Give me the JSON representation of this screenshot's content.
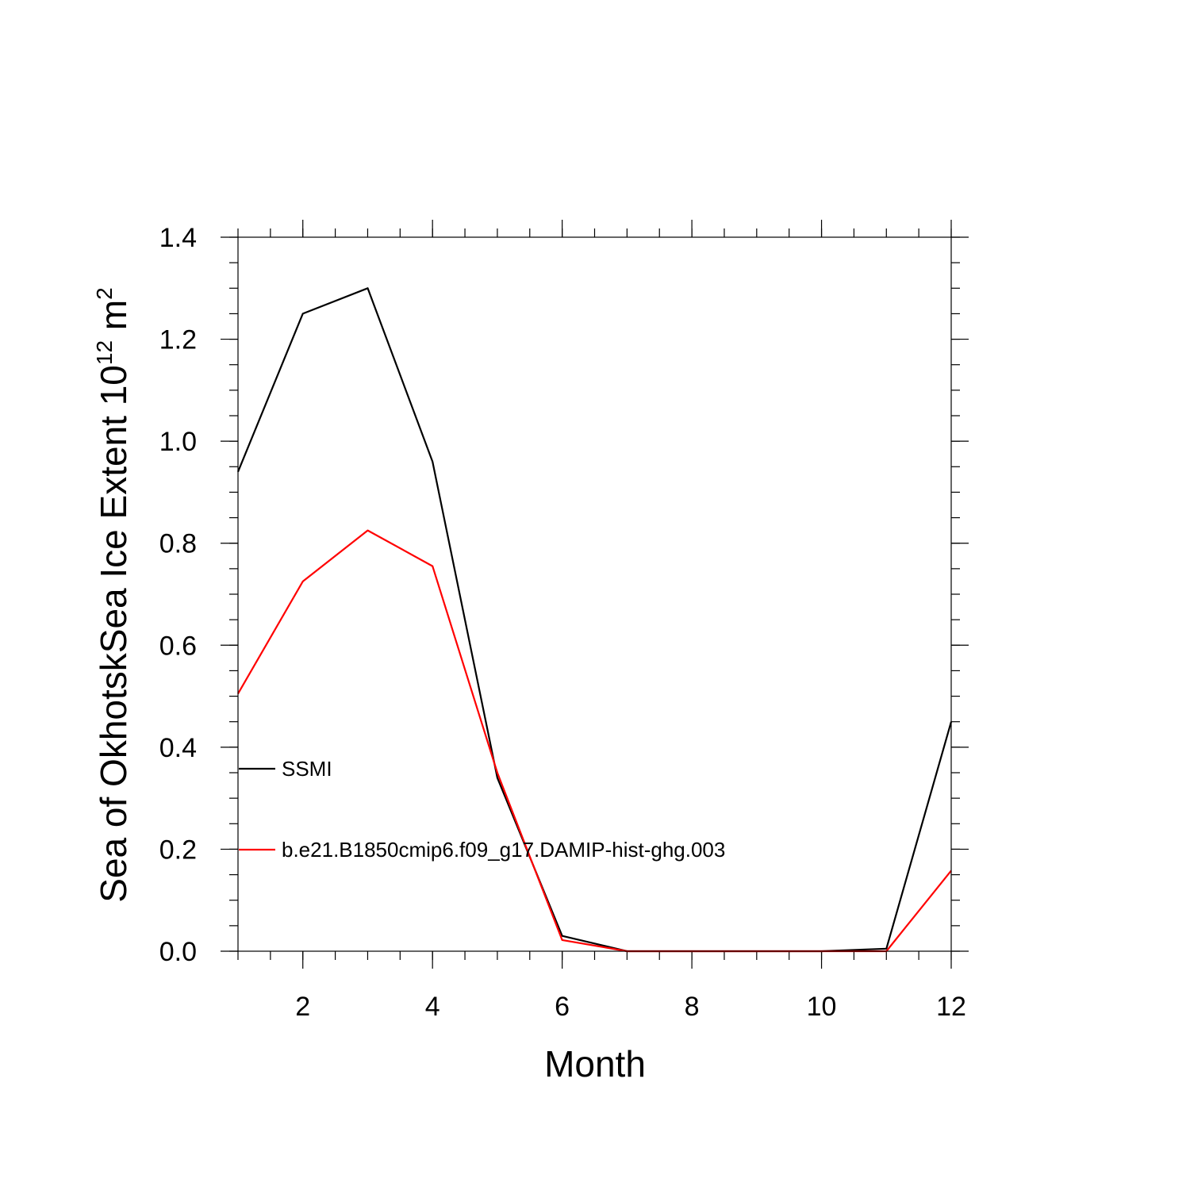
{
  "chart_data": {
    "type": "line",
    "xlabel": "Month",
    "ylabel_base": "Sea of OkhotskSea Ice Extent 10",
    "ylabel_exp": "12",
    "ylabel_unit": " m",
    "ylabel_unit_exp": "2",
    "xlim": [
      1,
      12
    ],
    "ylim": [
      0,
      1.4
    ],
    "x_ticks": [
      2,
      4,
      6,
      8,
      10,
      12
    ],
    "x_tick_labels": [
      "2",
      "4",
      "6",
      "8",
      "10",
      "12"
    ],
    "y_ticks": [
      0,
      0.2,
      0.4,
      0.6,
      0.8,
      1.0,
      1.2,
      1.4
    ],
    "y_tick_labels": [
      "0.0",
      "0.2",
      "0.4",
      "0.6",
      "0.8",
      "1.0",
      "1.2",
      "1.4"
    ],
    "x": [
      1,
      2,
      3,
      4,
      5,
      6,
      7,
      8,
      9,
      10,
      11,
      12
    ],
    "legend_position": "left-inside",
    "series": [
      {
        "name": "SSMI",
        "color": "#000000",
        "values": [
          0.94,
          1.25,
          1.3,
          0.96,
          0.34,
          0.03,
          0.0,
          0.0,
          0.0,
          0.0,
          0.005,
          0.45
        ]
      },
      {
        "name": "b.e21.B1850cmip6.f09_g17.DAMIP-hist-ghg.003",
        "color": "#ff0000",
        "values": [
          0.505,
          0.725,
          0.825,
          0.755,
          0.35,
          0.022,
          0.0,
          0.0,
          0.0,
          0.0,
          0.0,
          0.158
        ]
      }
    ]
  }
}
